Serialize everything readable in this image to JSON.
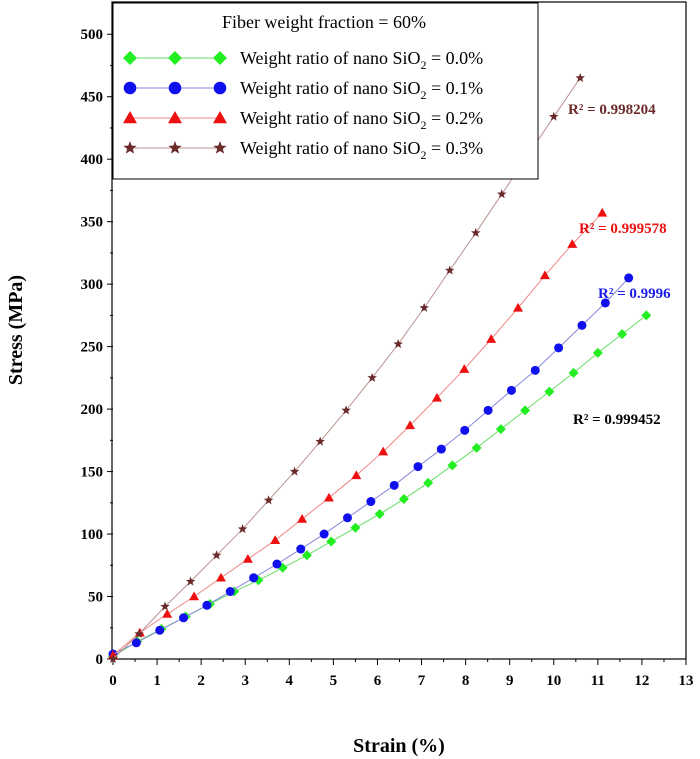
{
  "chart_data": {
    "type": "line",
    "title": "",
    "xlabel": "Strain (%)",
    "ylabel": "Stress (MPa)",
    "xlim": [
      0,
      13
    ],
    "ylim": [
      0,
      525
    ],
    "xticks": [
      0,
      1,
      2,
      3,
      4,
      5,
      6,
      7,
      8,
      9,
      10,
      11,
      12,
      13
    ],
    "yticks": [
      0,
      50,
      100,
      150,
      200,
      250,
      300,
      350,
      400,
      450,
      500
    ],
    "grid": false,
    "legend": {
      "position": "top-left",
      "title": "Fiber weight fraction = 60%"
    },
    "series": [
      {
        "name": "Weight ratio of nano SiO2 = 0.0%",
        "label_prefix": "Weight ratio of nano SiO",
        "label_sub": "2",
        "label_suffix": " = 0.0%",
        "marker": "diamond",
        "color": "#22ee22",
        "line_color": "#66dd66",
        "r2_text": "R² = 0.999452",
        "r2_color": "#000000",
        "x": [
          0.0,
          0.55,
          1.1,
          1.65,
          2.2,
          2.75,
          3.3,
          3.85,
          4.4,
          4.95,
          5.5,
          6.05,
          6.6,
          7.15,
          7.7,
          8.25,
          8.8,
          9.35,
          9.9,
          10.45,
          11.0,
          11.55,
          12.1
        ],
        "y": [
          2,
          14,
          24,
          34,
          44,
          54,
          63,
          73,
          83,
          94,
          105,
          116,
          128,
          141,
          155,
          169,
          184,
          199,
          214,
          229,
          245,
          260,
          275
        ]
      },
      {
        "name": "Weight ratio of nano SiO2 = 0.1%",
        "label_prefix": "Weight ratio of nano SiO",
        "label_sub": "2",
        "label_suffix": " = 0.1%",
        "marker": "circle",
        "color": "#1010ee",
        "line_color": "#8888dd",
        "r2_text": "R² = 0.9996",
        "r2_color": "#1a1aee",
        "x": [
          0.0,
          0.53,
          1.06,
          1.6,
          2.13,
          2.66,
          3.19,
          3.72,
          4.26,
          4.79,
          5.32,
          5.85,
          6.38,
          6.92,
          7.45,
          7.98,
          8.51,
          9.04,
          9.58,
          10.11,
          10.64,
          11.17,
          11.7
        ],
        "y": [
          4,
          13,
          23,
          33,
          43,
          54,
          65,
          76,
          88,
          100,
          113,
          126,
          139,
          154,
          168,
          183,
          199,
          215,
          231,
          249,
          267,
          285,
          305
        ]
      },
      {
        "name": "Weight ratio of nano SiO2 = 0.2%",
        "label_prefix": "Weight ratio of nano SiO",
        "label_sub": "2",
        "label_suffix": " = 0.2%",
        "marker": "triangle",
        "color": "#ee1010",
        "line_color": "#ee8888",
        "r2_text": "R² = 0.999578",
        "r2_color": "#ee1010",
        "x": [
          0.0,
          0.61,
          1.23,
          1.84,
          2.45,
          3.06,
          3.68,
          4.29,
          4.9,
          5.52,
          6.13,
          6.74,
          7.35,
          7.97,
          8.58,
          9.19,
          9.8,
          10.42,
          11.1
        ],
        "y": [
          3,
          21,
          36,
          50,
          65,
          80,
          95,
          112,
          129,
          147,
          166,
          187,
          209,
          232,
          256,
          281,
          307,
          332,
          357
        ]
      },
      {
        "name": "Weight ratio of nano SiO2 = 0.3%",
        "label_prefix": "Weight ratio of nano SiO",
        "label_sub": "2",
        "label_suffix": " = 0.3%",
        "marker": "star",
        "color": "#6b2a2a",
        "line_color": "#b89090",
        "r2_text": "R² = 0.998204",
        "r2_color": "#6b2a2a",
        "x": [
          0.0,
          0.59,
          1.18,
          1.76,
          2.35,
          2.94,
          3.53,
          4.12,
          4.7,
          5.29,
          5.88,
          6.47,
          7.06,
          7.64,
          8.23,
          8.82,
          9.41,
          10.0,
          10.6
        ],
        "y": [
          0,
          20,
          42,
          62,
          83,
          104,
          127,
          150,
          174,
          199,
          225,
          252,
          281,
          311,
          341,
          372,
          403,
          434,
          465
        ]
      }
    ]
  }
}
